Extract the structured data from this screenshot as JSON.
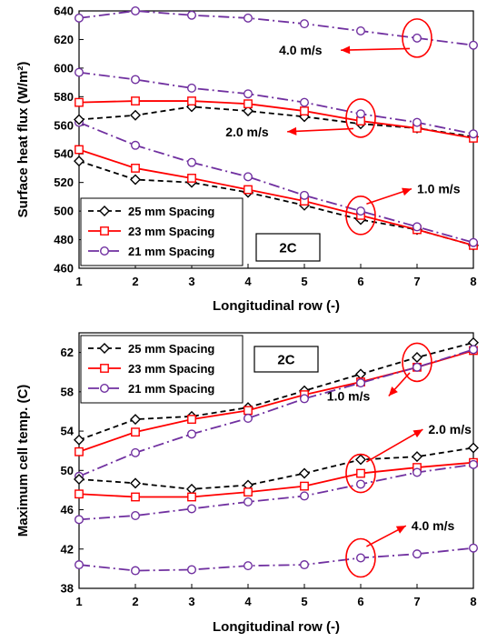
{
  "chart_data": [
    {
      "type": "line",
      "panel_label": "2C",
      "xlabel": "Longitudinal row (-)",
      "ylabel": "Surface heat flux (W/m²)",
      "xlim": [
        1,
        8
      ],
      "ylim": [
        460,
        640
      ],
      "xticks": [
        "1",
        "2",
        "3",
        "4",
        "5",
        "6",
        "7",
        "8"
      ],
      "yticks": [
        "460",
        "480",
        "500",
        "520",
        "540",
        "560",
        "580",
        "600",
        "620",
        "640"
      ],
      "grid": "none",
      "legend_position": "bottom-left",
      "x": [
        1,
        2,
        3,
        4,
        5,
        6,
        7,
        8
      ],
      "series": [
        {
          "name": "25 mm Spacing",
          "group": "1.0 m/s",
          "values": [
            535,
            522,
            520,
            513,
            504,
            494,
            487,
            476
          ],
          "color": "#000000",
          "marker": "diamond",
          "dash": "6,4"
        },
        {
          "name": "23 mm Spacing",
          "group": "1.0 m/s",
          "values": [
            543,
            530,
            523,
            515,
            507,
            497,
            487,
            476
          ],
          "color": "#ff0000",
          "marker": "square",
          "dash": ""
        },
        {
          "name": "21 mm Spacing",
          "group": "1.0 m/s",
          "values": [
            562,
            546,
            534,
            524,
            511,
            500,
            489,
            478
          ],
          "color": "#7030a0",
          "marker": "circle",
          "dash": "12,4,2,4"
        },
        {
          "name": "25 mm Spacing",
          "group": "2.0 m/s",
          "values": [
            564,
            567,
            573,
            570,
            566,
            561,
            558,
            552
          ],
          "color": "#000000",
          "marker": "diamond",
          "dash": "6,4"
        },
        {
          "name": "23 mm Spacing",
          "group": "2.0 m/s",
          "values": [
            576,
            577,
            577,
            575,
            570,
            563,
            558,
            551
          ],
          "color": "#ff0000",
          "marker": "square",
          "dash": ""
        },
        {
          "name": "21 mm Spacing",
          "group": "2.0 m/s",
          "values": [
            597,
            592,
            586,
            582,
            576,
            568,
            562,
            554
          ],
          "color": "#7030a0",
          "marker": "circle",
          "dash": "12,4,2,4"
        },
        {
          "name": "21 mm Spacing",
          "group": "4.0 m/s",
          "values": [
            635,
            640,
            637,
            635,
            631,
            626,
            621,
            616
          ],
          "color": "#7030a0",
          "marker": "circle",
          "dash": "12,4,2,4"
        }
      ],
      "annotations": [
        {
          "text": "4.0 m/s",
          "at_x": 7,
          "at_y": 621,
          "label_x": 4.55,
          "label_y": 610
        },
        {
          "text": "2.0 m/s",
          "at_x": 6,
          "at_y": 565,
          "label_x": 3.6,
          "label_y": 553
        },
        {
          "text": "1.0 m/s",
          "at_x": 6,
          "at_y": 497,
          "label_x": 7.0,
          "label_y": 513
        }
      ]
    },
    {
      "type": "line",
      "panel_label": "2C",
      "xlabel": "Longitudinal row (-)",
      "ylabel": "Maximum cell temp. (C)",
      "xlim": [
        1,
        8
      ],
      "ylim": [
        38,
        64
      ],
      "xticks": [
        "1",
        "2",
        "3",
        "4",
        "5",
        "6",
        "7",
        "8"
      ],
      "yticks": [
        "38",
        "42",
        "46",
        "50",
        "54",
        "58",
        "62"
      ],
      "grid": "none",
      "legend_position": "top-left",
      "x": [
        1,
        2,
        3,
        4,
        5,
        6,
        7,
        8
      ],
      "series": [
        {
          "name": "25 mm Spacing",
          "group": "1.0 m/s",
          "values": [
            53.1,
            55.2,
            55.5,
            56.4,
            58.1,
            59.8,
            61.5,
            63.0
          ],
          "color": "#000000",
          "marker": "diamond",
          "dash": "6,4"
        },
        {
          "name": "23 mm Spacing",
          "group": "1.0 m/s",
          "values": [
            51.9,
            53.9,
            55.2,
            56.1,
            57.7,
            59.0,
            60.5,
            62.2
          ],
          "color": "#ff0000",
          "marker": "square",
          "dash": ""
        },
        {
          "name": "21 mm Spacing",
          "group": "1.0 m/s",
          "values": [
            49.4,
            51.8,
            53.7,
            55.3,
            57.3,
            58.9,
            60.5,
            62.3
          ],
          "color": "#7030a0",
          "marker": "circle",
          "dash": "12,4,2,4"
        },
        {
          "name": "25 mm Spacing",
          "group": "2.0 m/s",
          "values": [
            49.1,
            48.7,
            48.1,
            48.5,
            49.7,
            51.1,
            51.4,
            52.3
          ],
          "color": "#000000",
          "marker": "diamond",
          "dash": "6,4"
        },
        {
          "name": "23 mm Spacing",
          "group": "2.0 m/s",
          "values": [
            47.6,
            47.3,
            47.3,
            47.8,
            48.4,
            49.7,
            50.3,
            50.8
          ],
          "color": "#ff0000",
          "marker": "square",
          "dash": ""
        },
        {
          "name": "21 mm Spacing",
          "group": "2.0 m/s",
          "values": [
            45.0,
            45.4,
            46.1,
            46.8,
            47.4,
            48.6,
            49.8,
            50.6
          ],
          "color": "#7030a0",
          "marker": "circle",
          "dash": "12,4,2,4"
        },
        {
          "name": "21 mm Spacing",
          "group": "4.0 m/s",
          "values": [
            40.4,
            39.8,
            39.9,
            40.3,
            40.4,
            41.1,
            41.5,
            42.1
          ],
          "color": "#7030a0",
          "marker": "circle",
          "dash": "12,4,2,4"
        }
      ],
      "annotations": [
        {
          "text": "1.0 m/s",
          "at_x": 7,
          "at_y": 61,
          "label_x": 5.4,
          "label_y": 57.2
        },
        {
          "text": "2.0 m/s",
          "at_x": 6,
          "at_y": 49.7,
          "label_x": 7.2,
          "label_y": 53.8
        },
        {
          "text": "4.0 m/s",
          "at_x": 6,
          "at_y": 41.1,
          "label_x": 6.9,
          "label_y": 44.0
        }
      ]
    }
  ]
}
